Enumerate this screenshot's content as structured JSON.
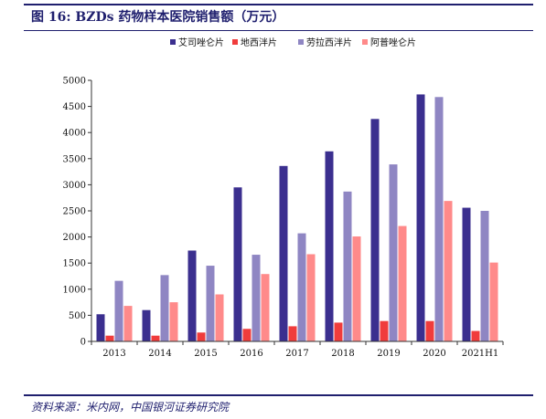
{
  "header": {
    "title": "图 16:  BZDs 药物样本医院销售额（万元）"
  },
  "footer": {
    "source": "资料来源：米内网，中国银河证券研究院"
  },
  "colors": {
    "frame": "#1f1f6e"
  },
  "chart_data": {
    "type": "bar",
    "categories": [
      "2013",
      "2014",
      "2015",
      "2016",
      "2017",
      "2018",
      "2019",
      "2020",
      "2021H1"
    ],
    "series": [
      {
        "name": "艾司唑仑片",
        "color": "#3b2f8f",
        "values": [
          520,
          600,
          1740,
          2950,
          3360,
          3640,
          4260,
          4730,
          2560
        ]
      },
      {
        "name": "地西泮片",
        "color": "#f03c3c",
        "values": [
          110,
          110,
          170,
          240,
          290,
          360,
          390,
          390,
          200
        ]
      },
      {
        "name": "劳拉西泮片",
        "color": "#8f86c3",
        "values": [
          1160,
          1270,
          1450,
          1660,
          2070,
          2870,
          3390,
          4680,
          2500
        ]
      },
      {
        "name": "阿普唑仑片",
        "color": "#ff8a8a",
        "values": [
          680,
          750,
          900,
          1290,
          1670,
          2010,
          2210,
          2690,
          1510
        ]
      }
    ],
    "ylim": [
      0,
      5000
    ],
    "yticks": [
      "0",
      "500",
      "1000",
      "1500",
      "2000",
      "2500",
      "3000",
      "3500",
      "4000",
      "4500",
      "5000"
    ],
    "legend": "top",
    "grid": false
  }
}
